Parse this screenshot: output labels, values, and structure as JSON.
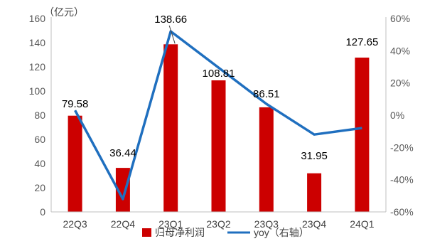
{
  "chart_data": {
    "type": "bar+line",
    "categories": [
      "22Q3",
      "22Q4",
      "23Q1",
      "23Q2",
      "23Q3",
      "23Q4",
      "24Q1"
    ],
    "series": [
      {
        "name": "归母净利润",
        "type": "bar",
        "axis": "left",
        "color": "#cc0000",
        "values": [
          79.58,
          36.44,
          138.66,
          108.81,
          86.51,
          31.95,
          127.65
        ],
        "labels": [
          "79.58",
          "36.44",
          "138.66",
          "108.81",
          "86.51",
          "31.95",
          "127.65"
        ]
      },
      {
        "name": "yoy（右轴）",
        "type": "line",
        "axis": "right",
        "color": "#1f6fbf",
        "values": [
          3,
          -52,
          52,
          null,
          7,
          -12,
          -8
        ]
      }
    ],
    "y_left": {
      "unit_label": "（亿元）",
      "range": [
        0,
        160
      ],
      "ticks": [
        0,
        20,
        40,
        60,
        80,
        100,
        120,
        140,
        160
      ],
      "tick_labels": [
        "0",
        "20",
        "40",
        "60",
        "80",
        "100",
        "120",
        "140",
        "160"
      ]
    },
    "y_right": {
      "range": [
        -60,
        60
      ],
      "ticks": [
        -60,
        -40,
        -20,
        0,
        20,
        40,
        60
      ],
      "tick_labels": [
        "-60%",
        "-40%",
        "-20%",
        "0%",
        "20%",
        "40%",
        "60%"
      ]
    },
    "grid": false,
    "legend_position": "bottom",
    "legend": [
      "归母净利润",
      "yoy（右轴）"
    ]
  }
}
